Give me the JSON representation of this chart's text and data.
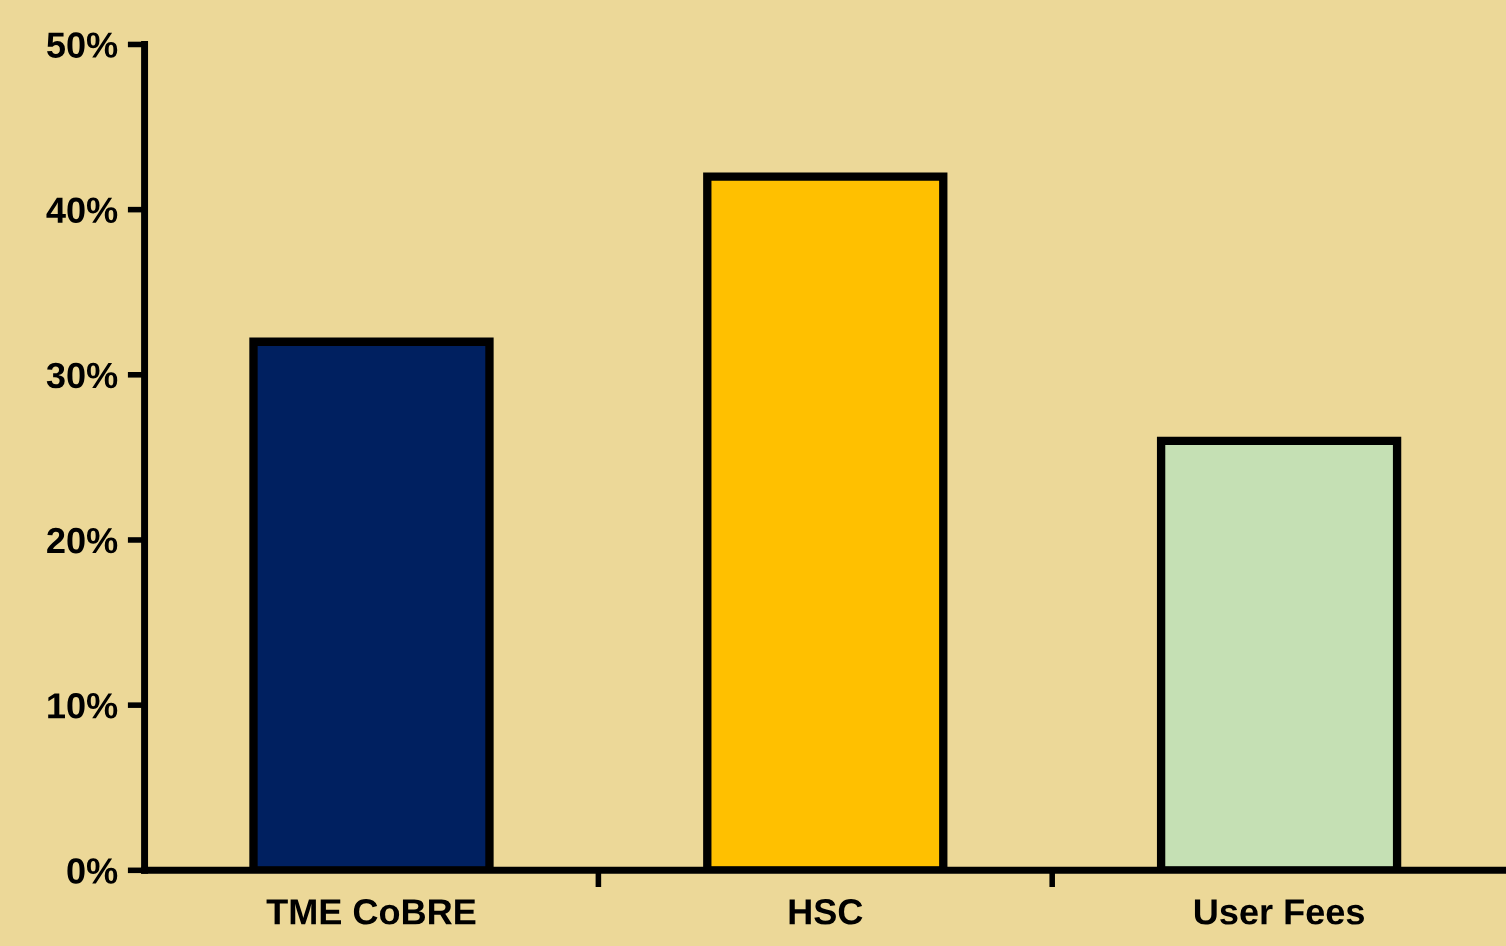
{
  "chart_data": {
    "type": "bar",
    "categories": [
      "TME CoBRE",
      "HSC",
      "User Fees"
    ],
    "values": [
      32,
      42,
      26
    ],
    "colors": [
      "#002060",
      "#ffc000",
      "#c5e0b4"
    ],
    "ylim": [
      0,
      50
    ],
    "yticks": [
      {
        "value": 0,
        "label": "0%"
      },
      {
        "value": 10,
        "label": "10%"
      },
      {
        "value": 20,
        "label": "20%"
      },
      {
        "value": 30,
        "label": "30%"
      },
      {
        "value": 40,
        "label": "40%"
      },
      {
        "value": 50,
        "label": "50%"
      }
    ],
    "grid": false,
    "legend": false
  }
}
